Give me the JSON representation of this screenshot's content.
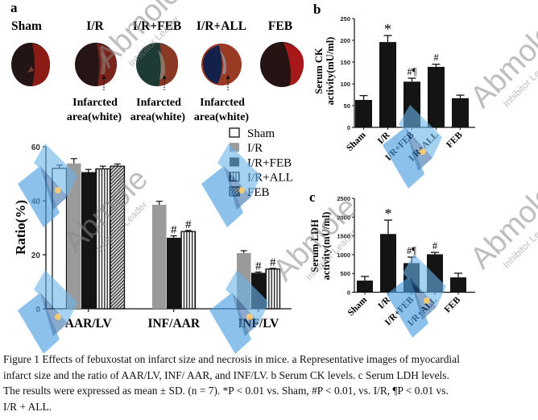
{
  "panel_labels": {
    "a": "a",
    "b": "b",
    "c": "c"
  },
  "heart_images": {
    "groups": [
      "Sham",
      "I/R",
      "I/R+FEB",
      "I/R+ALL",
      "FEB"
    ],
    "annotation_line1": "Infarcted",
    "annotation_line2": "area(white)",
    "annotated_groups": [
      "I/R",
      "I/R+FEB",
      "I/R+ALL"
    ]
  },
  "watermark": {
    "brand": "Abmole",
    "tagline": "Inhibitor Leader"
  },
  "colors": {
    "bar_black": "#141414",
    "bar_gray": "#9a9a9a",
    "bar_white": "#ffffff",
    "watermark_blue": "#3d8fd6",
    "watermark_dot": "#f2b84b",
    "watermark_text": "#8a8a8a"
  },
  "chart_data": [
    {
      "id": "a",
      "type": "bar",
      "title": "",
      "xlabel": "",
      "ylabel": "Ratio(%)",
      "ylim": [
        0,
        60
      ],
      "yticks": [
        0,
        20,
        40,
        60
      ],
      "grid": false,
      "legend_position": "top-right",
      "categories": [
        "AAR/LV",
        "INF/AAR",
        "INF/LV"
      ],
      "series": [
        {
          "name": "Sham",
          "fill": "white",
          "values": [
            52.0,
            null,
            null
          ],
          "errors": [
            1.2,
            null,
            null
          ],
          "marks": [
            null,
            null,
            null
          ]
        },
        {
          "name": "I/R",
          "fill": "gray",
          "values": [
            53.8,
            38.5,
            20.6
          ],
          "errors": [
            1.8,
            1.3,
            0.9
          ],
          "marks": [
            null,
            null,
            null
          ]
        },
        {
          "name": "I/R+FEB",
          "fill": "black",
          "values": [
            50.6,
            26.3,
            13.3
          ],
          "errors": [
            1.0,
            0.7,
            0.3
          ],
          "marks": [
            null,
            "#",
            "#"
          ]
        },
        {
          "name": "I/R+ALL",
          "fill": "vstripe",
          "values": [
            51.8,
            28.6,
            14.7
          ],
          "errors": [
            1.0,
            0.4,
            0.3
          ],
          "marks": [
            null,
            "#",
            "#"
          ]
        },
        {
          "name": "FEB",
          "fill": "hatch",
          "values": [
            52.8,
            null,
            null
          ],
          "errors": [
            0.8,
            null,
            null
          ],
          "marks": [
            null,
            null,
            null
          ]
        }
      ]
    },
    {
      "id": "b",
      "type": "bar",
      "title": "",
      "xlabel": "",
      "ylabel_line1": "Serum CK",
      "ylabel_line2": "activity(mU/ml)",
      "ylim": [
        0,
        250
      ],
      "yticks": [
        0,
        50,
        100,
        150,
        200,
        250
      ],
      "grid": false,
      "categories": [
        "Sham",
        "I/R",
        "I/R+FEB",
        "I/R+ALL",
        "FEB"
      ],
      "values": [
        63,
        196,
        105,
        139,
        67
      ],
      "errors": [
        10,
        15,
        8,
        6,
        7
      ],
      "marks": [
        "",
        "*",
        "#¶",
        "#",
        ""
      ]
    },
    {
      "id": "c",
      "type": "bar",
      "title": "",
      "xlabel": "",
      "ylabel_line1": "Serum LDH",
      "ylabel_line2": "activity(mU/ml)",
      "ylim": [
        0,
        2500
      ],
      "yticks": [
        0,
        500,
        1000,
        1500,
        2000,
        2500
      ],
      "grid": false,
      "categories": [
        "Sham",
        "I/R",
        "I/R+FEB",
        "I/R+ALL",
        "FEB"
      ],
      "values": [
        310,
        1550,
        775,
        1010,
        395
      ],
      "errors": [
        110,
        370,
        160,
        50,
        110
      ],
      "marks": [
        "",
        "*",
        "#¶",
        "#",
        ""
      ]
    }
  ],
  "caption": {
    "lines": [
      "Figure 1 Effects of febuxostat on infarct size and necrosis in mice. a Representative images of myocardial",
      "infarct size and the ratio of AAR/LV, INF/ AAR, and INF/LV. b Serum CK levels. c Serum LDH levels.",
      "The results were expressed as mean ± SD. (n = 7). *P < 0.01 vs. Sham, #P < 0.01, vs. I/R, ¶P < 0.01 vs.",
      "I/R + ALL."
    ]
  }
}
